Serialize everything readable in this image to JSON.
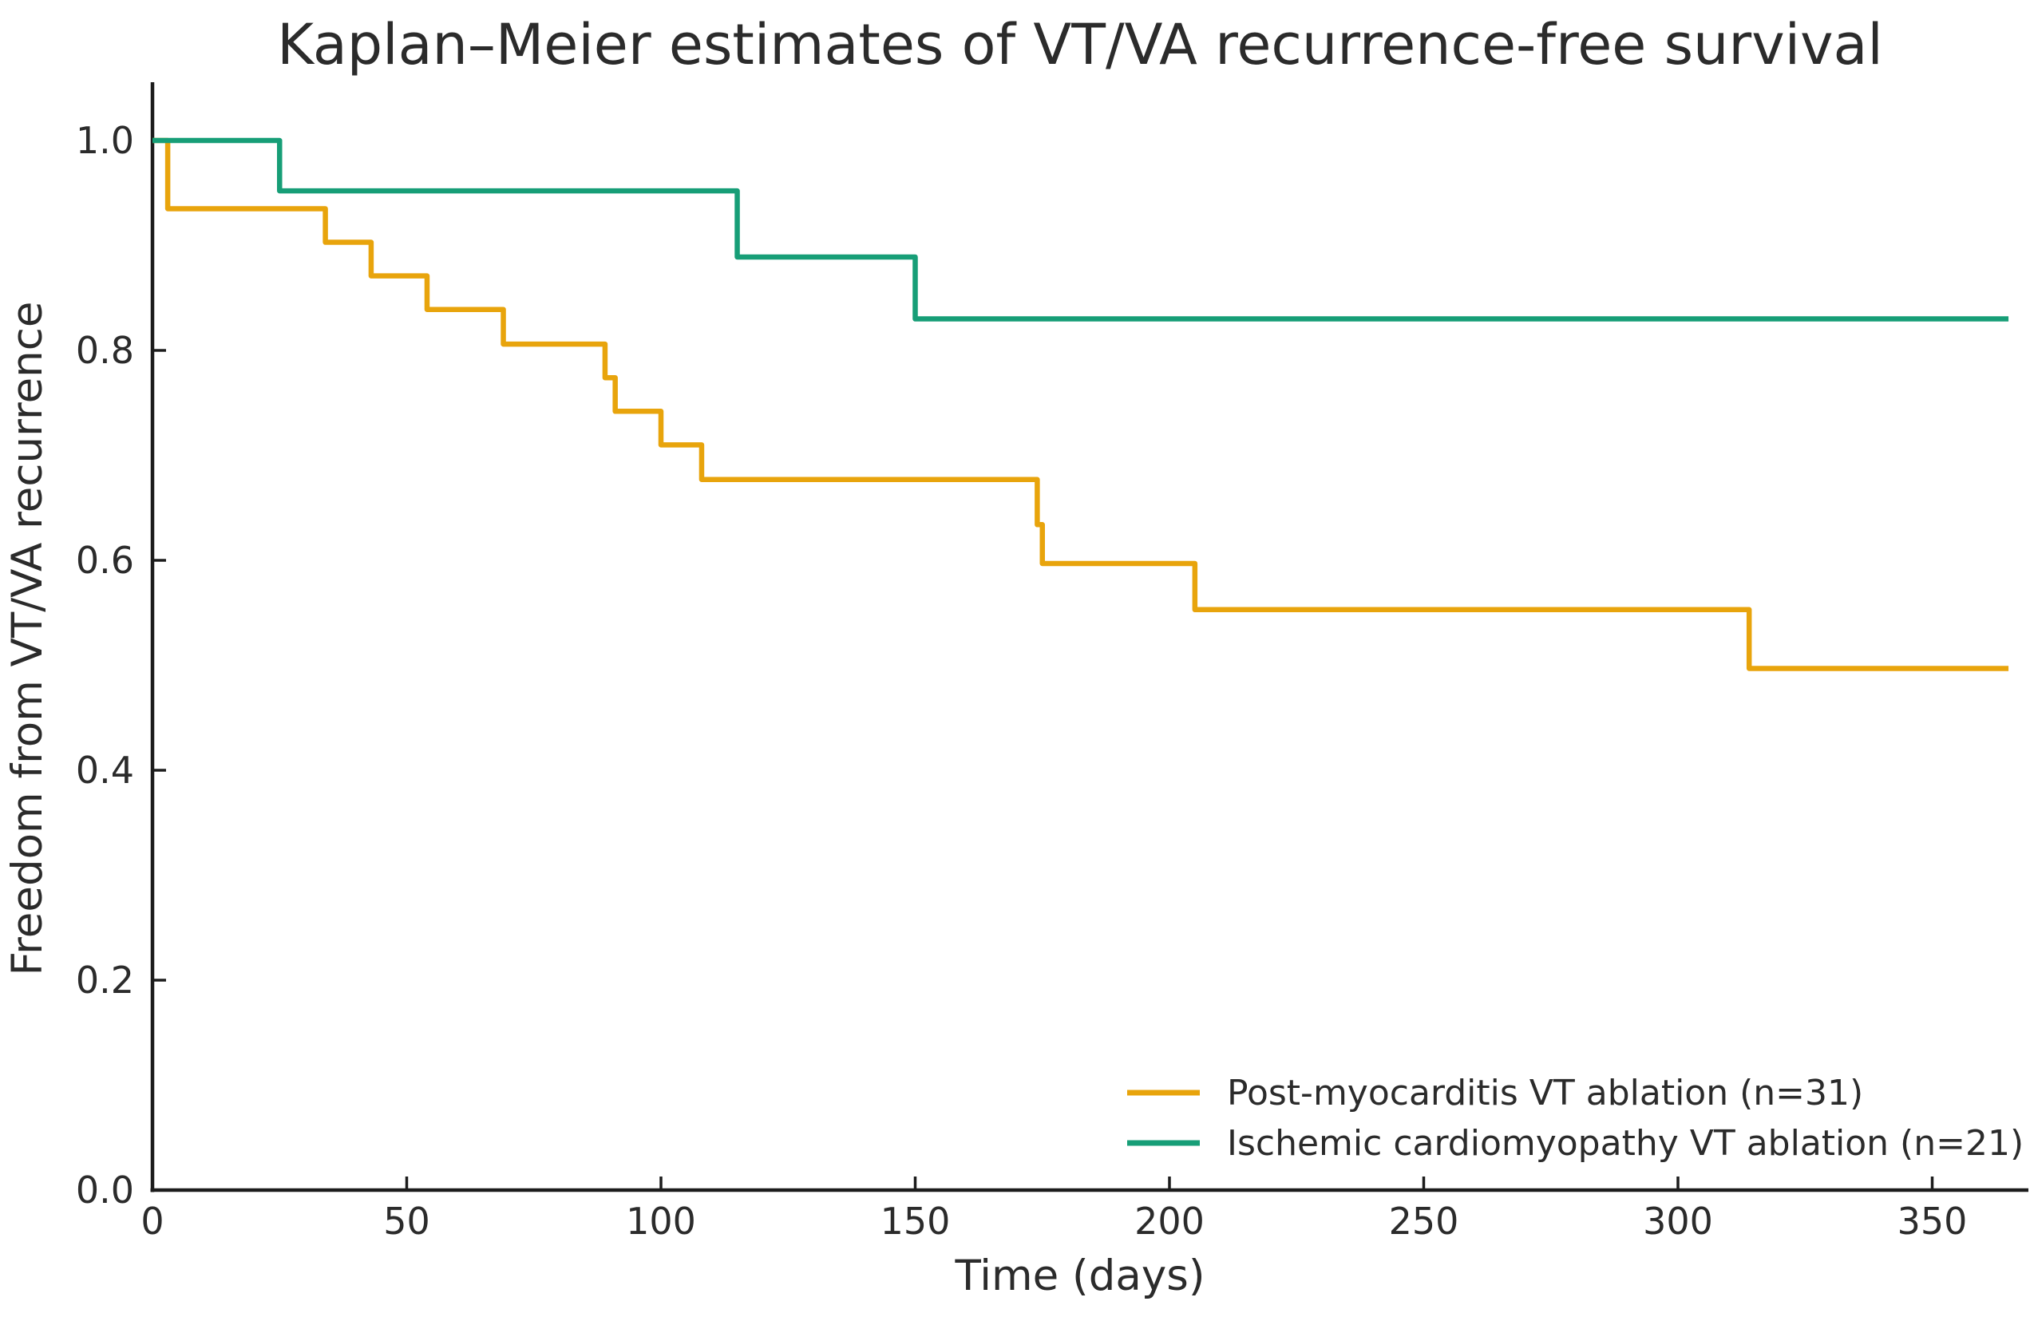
{
  "title": "Kaplan–Meier estimates of VT/VA recurrence-free survival",
  "axes": {
    "x": {
      "label": "Time (days)",
      "ticks": [
        0,
        50,
        100,
        150,
        200,
        250,
        300,
        350
      ],
      "min": 0,
      "max": 366
    },
    "y": {
      "label": "Freedom from VT/VA recurrence",
      "ticks": [
        "0.0",
        "0.2",
        "0.4",
        "0.6",
        "0.8",
        "1.0"
      ],
      "min": 0,
      "max": 1.05
    }
  },
  "chart_data": {
    "type": "line",
    "subtype": "kaplan-meier-step",
    "step": "post",
    "title": "Kaplan–Meier estimates of VT/VA recurrence-free survival",
    "xlabel": "Time (days)",
    "ylabel": "Freedom from VT/VA recurrence",
    "xlim": [
      0,
      366
    ],
    "ylim": [
      0,
      1.05
    ],
    "grid": false,
    "legend_position": "lower right",
    "series": [
      {
        "name": "Post-myocarditis VT ablation (n=31)",
        "n": 31,
        "color": "#E8A40C",
        "points": [
          [
            0,
            1.0
          ],
          [
            3,
            0.935
          ],
          [
            34,
            0.903
          ],
          [
            43,
            0.871
          ],
          [
            54,
            0.839
          ],
          [
            69,
            0.806
          ],
          [
            89,
            0.774
          ],
          [
            91,
            0.742
          ],
          [
            100,
            0.71
          ],
          [
            108,
            0.677
          ],
          [
            174,
            0.634
          ],
          [
            175,
            0.597
          ],
          [
            205,
            0.553
          ],
          [
            314,
            0.497
          ],
          [
            365,
            0.497
          ]
        ]
      },
      {
        "name": "Ischemic cardiomyopathy VT ablation (n=21)",
        "n": 21,
        "color": "#179E77",
        "points": [
          [
            0,
            1.0
          ],
          [
            25,
            0.952
          ],
          [
            115,
            0.889
          ],
          [
            150,
            0.83
          ],
          [
            365,
            0.83
          ]
        ]
      }
    ]
  }
}
